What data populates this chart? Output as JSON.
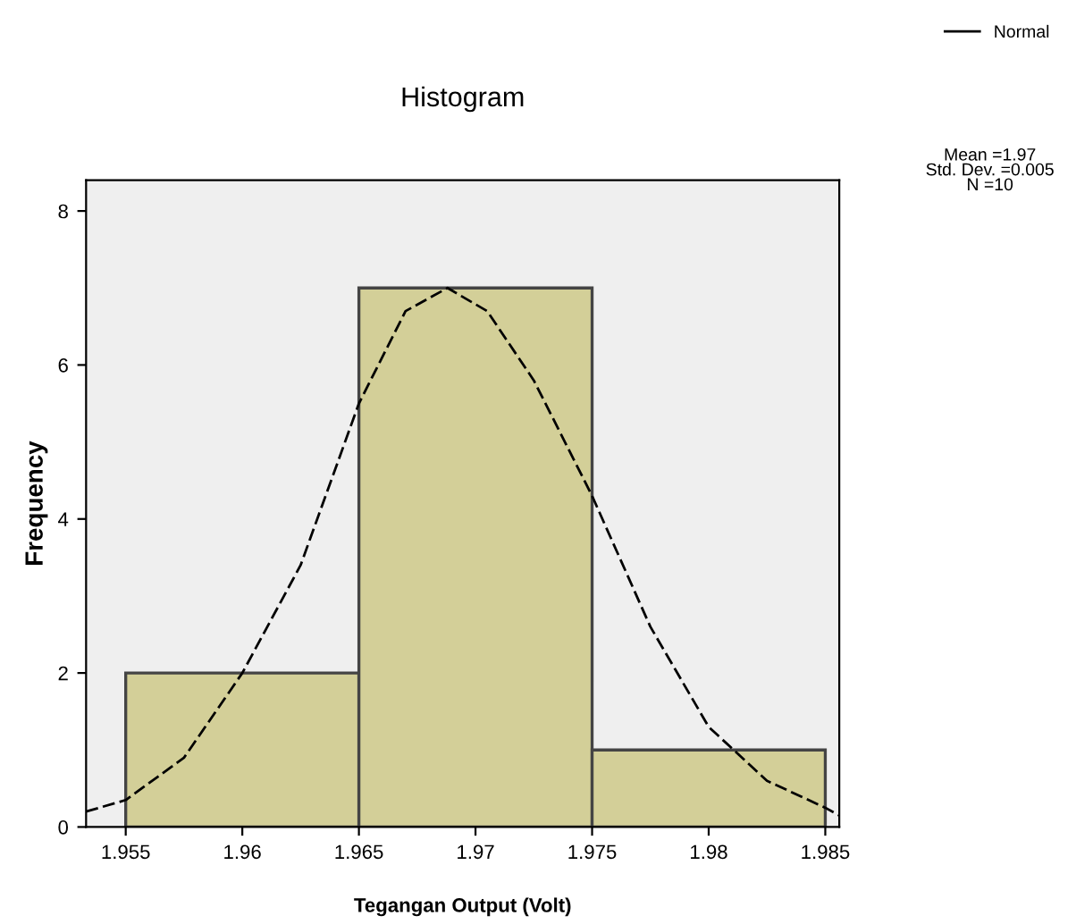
{
  "chart_data": {
    "type": "histogram",
    "title": "Histogram",
    "xlabel": "Tegangan Output (Volt)",
    "ylabel": "Frequency",
    "bins": [
      1.955,
      1.965,
      1.975,
      1.985
    ],
    "values": [
      2,
      7,
      1
    ],
    "color": "#d3cf98",
    "series": [
      {
        "type": "line",
        "name": "Normal",
        "color": "#000000",
        "line_style": "dashed",
        "x": [
          1.9533,
          1.955,
          1.9575,
          1.96,
          1.9625,
          1.965,
          1.967,
          1.9688,
          1.9705,
          1.9725,
          1.975,
          1.9775,
          1.98,
          1.9825,
          1.985,
          1.9856
        ],
        "values": [
          0.2,
          0.35,
          0.9,
          2.0,
          3.4,
          5.5,
          6.7,
          7.0,
          6.7,
          5.8,
          4.3,
          2.6,
          1.3,
          0.6,
          0.25,
          0.15
        ]
      }
    ],
    "xlim": [
      1.9533,
      1.9856
    ],
    "ylim": [
      0,
      8.4
    ],
    "xticks": [
      1.955,
      1.96,
      1.965,
      1.97,
      1.975,
      1.98,
      1.985
    ],
    "yticks": [
      0,
      2,
      4,
      6,
      8
    ],
    "annotations": [
      "Mean =1.97\nStd. Dev. =0.005\nN =10"
    ],
    "legend": "top right",
    "grid": false
  }
}
